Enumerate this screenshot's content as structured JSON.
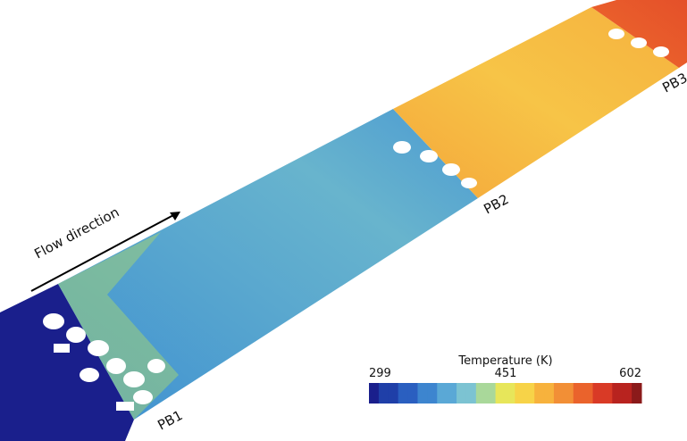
{
  "annotation": "Flow direction",
  "sections": [
    "PB1",
    "PB2",
    "PB3"
  ],
  "colorbar": {
    "title": "Temperature (K)",
    "ticks": [
      299,
      451,
      602
    ]
  }
}
